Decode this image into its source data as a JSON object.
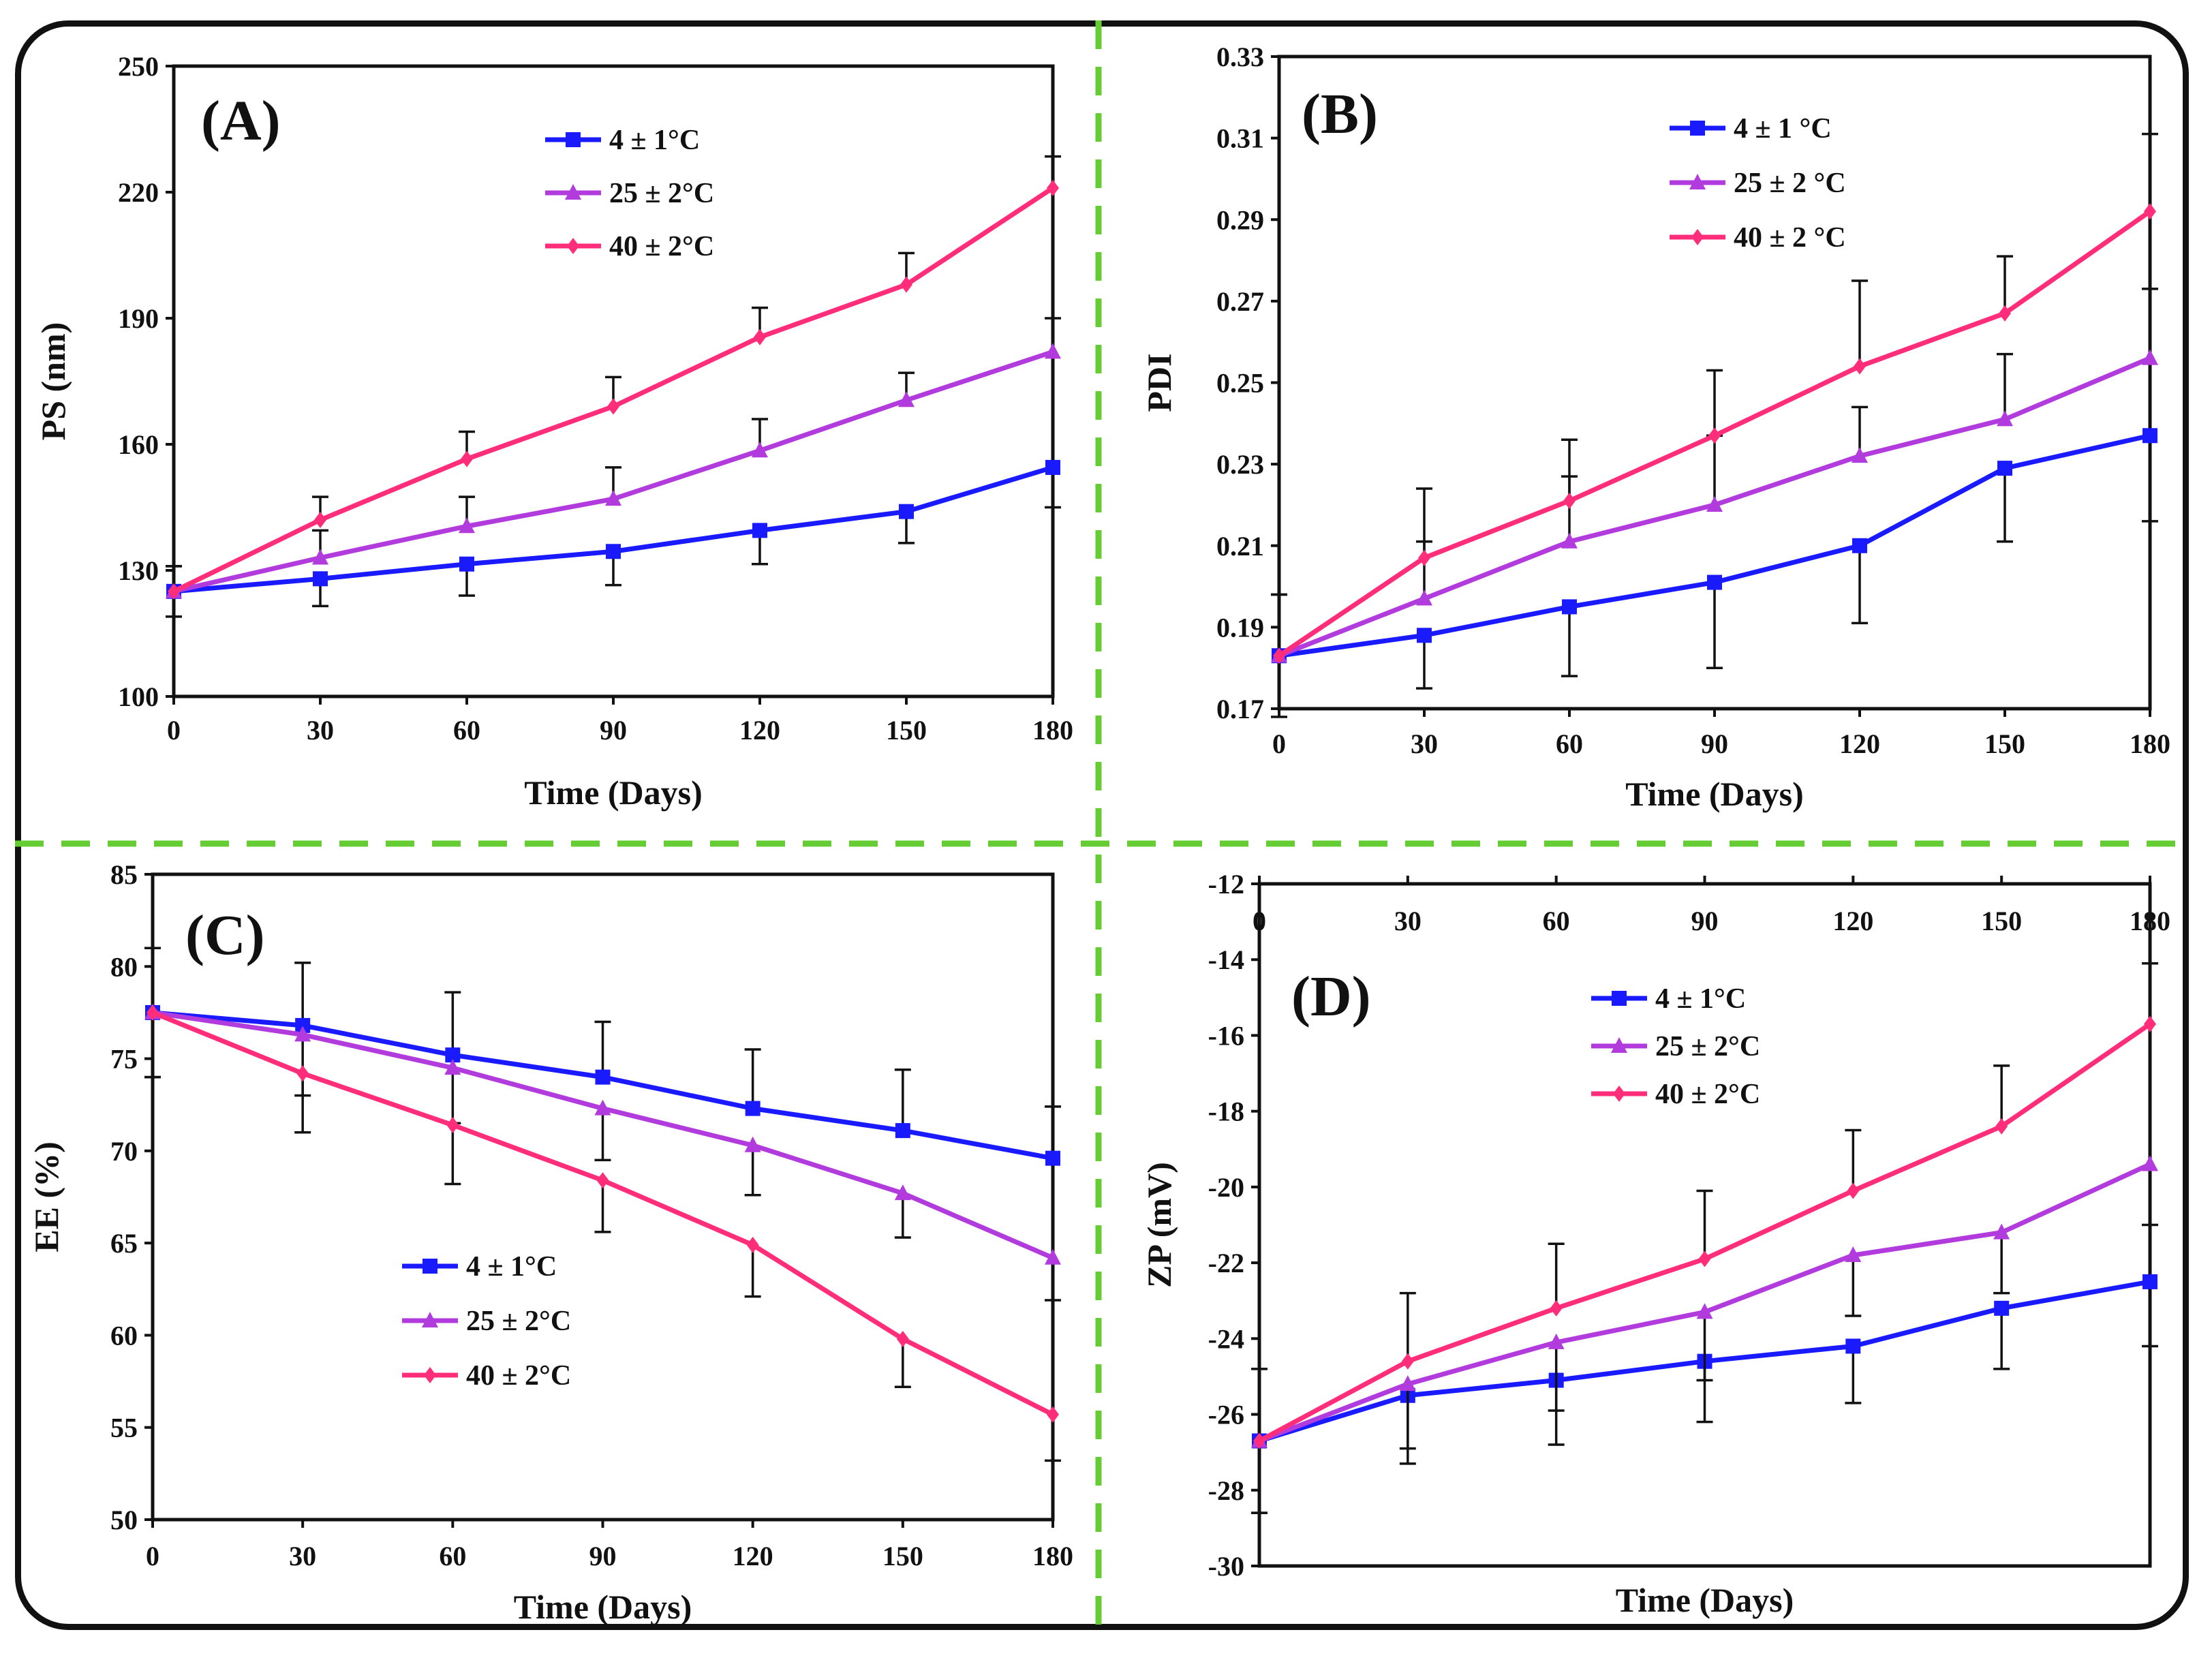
{
  "colors": {
    "divider": "#66cc33",
    "s4": "#1a1aff",
    "s25": "#b23bdd",
    "s40": "#ff2d7a",
    "axis": "#111111"
  },
  "chart_data": [
    {
      "panel": "A",
      "type": "line",
      "label": "(A)",
      "xlabel": "Time (Days)",
      "ylabel": "PS (nm)",
      "x": [
        0,
        30,
        60,
        90,
        120,
        150,
        180
      ],
      "xlim": [
        0,
        180
      ],
      "xticks": [
        0,
        30,
        60,
        90,
        120,
        150,
        180
      ],
      "ylim": [
        100,
        250
      ],
      "yticks": [
        100,
        130,
        160,
        190,
        220,
        250
      ],
      "legend": "top-center",
      "series": [
        {
          "name": "4 ± 1°C",
          "marker": "square",
          "values": [
            125,
            128,
            131.5,
            134.5,
            139.5,
            144,
            154.5
          ],
          "err": [
            6,
            6.5,
            7.5,
            8,
            8,
            7.5,
            9.5
          ],
          "err_dir": "down"
        },
        {
          "name": "25 ± 2°C",
          "marker": "triangle",
          "values": [
            125,
            133,
            140.5,
            147,
            158.5,
            170.5,
            182
          ],
          "err": [
            6,
            6.5,
            7,
            7.5,
            7.5,
            6.5,
            8
          ],
          "err_dir": "up"
        },
        {
          "name": "40 ± 2°C",
          "marker": "diamond",
          "values": [
            125,
            142,
            156.5,
            169,
            185.5,
            198,
            221
          ],
          "err": [
            6,
            5.5,
            6.5,
            7,
            7,
            7.5,
            7.5
          ],
          "err_dir": "up"
        }
      ]
    },
    {
      "panel": "B",
      "type": "line",
      "label": "(B)",
      "xlabel": "Time (Days)",
      "ylabel": "PDI",
      "x": [
        0,
        30,
        60,
        90,
        120,
        150,
        180
      ],
      "xlim": [
        0,
        180
      ],
      "xticks": [
        0,
        30,
        60,
        90,
        120,
        150,
        180
      ],
      "ylim": [
        0.17,
        0.33
      ],
      "yticks": [
        0.17,
        0.19,
        0.21,
        0.23,
        0.25,
        0.27,
        0.29,
        0.31,
        0.33
      ],
      "ytickfmt": 2,
      "legend": "top-center",
      "series": [
        {
          "name": "4 ± 1 °C",
          "marker": "square",
          "values": [
            0.183,
            0.188,
            0.195,
            0.201,
            0.21,
            0.229,
            0.237
          ],
          "err": [
            0.015,
            0.013,
            0.017,
            0.021,
            0.019,
            0.018,
            0.021
          ],
          "err_dir": "down"
        },
        {
          "name": "25 ± 2 °C",
          "marker": "triangle",
          "values": [
            0.183,
            0.197,
            0.211,
            0.22,
            0.232,
            0.241,
            0.256
          ],
          "err": [
            0.015,
            0.014,
            0.016,
            0.017,
            0.012,
            0.016,
            0.017
          ],
          "err_dir": "up"
        },
        {
          "name": "40 ± 2 °C",
          "marker": "diamond",
          "values": [
            0.183,
            0.207,
            0.221,
            0.237,
            0.254,
            0.267,
            0.292
          ],
          "err": [
            0.015,
            0.017,
            0.015,
            0.016,
            0.021,
            0.014,
            0.019
          ],
          "err_dir": "up"
        }
      ]
    },
    {
      "panel": "C",
      "type": "line",
      "label": "(C)",
      "xlabel": "Time (Days)",
      "ylabel": "EE (%)",
      "x": [
        0,
        30,
        60,
        90,
        120,
        150,
        180
      ],
      "xlim": [
        0,
        180
      ],
      "xticks": [
        0,
        30,
        60,
        90,
        120,
        150,
        180
      ],
      "ylim": [
        50,
        85
      ],
      "yticks": [
        50,
        55,
        60,
        65,
        70,
        75,
        80,
        85
      ],
      "legend": "lower-left",
      "series": [
        {
          "name": "4 ± 1°C",
          "marker": "square",
          "values": [
            77.5,
            76.8,
            75.2,
            74,
            72.3,
            71.1,
            69.6
          ],
          "err": [
            3.5,
            3.4,
            3.4,
            3,
            3.2,
            3.3,
            2.8
          ],
          "err_dir": "up"
        },
        {
          "name": "25 ± 2°C",
          "marker": "triangle",
          "values": [
            77.5,
            76.3,
            74.5,
            72.3,
            70.3,
            67.7,
            64.2
          ],
          "err": [
            3.5,
            3.3,
            3,
            2.8,
            2.7,
            2.4,
            2.3
          ],
          "err_dir": "down"
        },
        {
          "name": "40 ± 2°C",
          "marker": "diamond",
          "values": [
            77.5,
            74.2,
            71.4,
            68.4,
            64.9,
            59.8,
            55.7
          ],
          "err": [
            3.5,
            3.2,
            3.2,
            2.8,
            2.8,
            2.6,
            2.5
          ],
          "err_dir": "down"
        }
      ]
    },
    {
      "panel": "D",
      "type": "line",
      "label": "(D)",
      "xlabel": "Time (Days)",
      "ylabel": "ZP (mV)",
      "x": [
        0,
        30,
        60,
        90,
        120,
        150,
        180
      ],
      "xlim": [
        0,
        180
      ],
      "xticks": [
        0,
        30,
        60,
        90,
        120,
        150,
        180
      ],
      "ylim": [
        -30,
        -12
      ],
      "yticks": [
        -30,
        -28,
        -26,
        -24,
        -22,
        -20,
        -18,
        -16,
        -14,
        -12
      ],
      "legend": "upper-left",
      "series": [
        {
          "name": "4 ± 1°C",
          "marker": "square",
          "values": [
            -26.7,
            -25.5,
            -25.1,
            -24.6,
            -24.2,
            -23.2,
            -22.5
          ],
          "err": [
            1.9,
            1.8,
            1.7,
            1.6,
            1.5,
            1.6,
            1.7
          ],
          "err_dir": "down"
        },
        {
          "name": "25 ± 2°C",
          "marker": "triangle",
          "values": [
            -26.7,
            -25.2,
            -24.1,
            -23.3,
            -21.8,
            -21.2,
            -19.4
          ],
          "err": [
            1.9,
            1.7,
            1.8,
            1.8,
            1.6,
            1.6,
            1.6
          ],
          "err_dir": "down"
        },
        {
          "name": "40 ± 2°C",
          "marker": "diamond",
          "values": [
            -26.7,
            -24.6,
            -23.2,
            -21.9,
            -20.1,
            -18.4,
            -15.7
          ],
          "err": [
            1.9,
            1.8,
            1.7,
            1.8,
            1.6,
            1.6,
            1.6
          ],
          "err_dir": "up"
        }
      ]
    }
  ]
}
